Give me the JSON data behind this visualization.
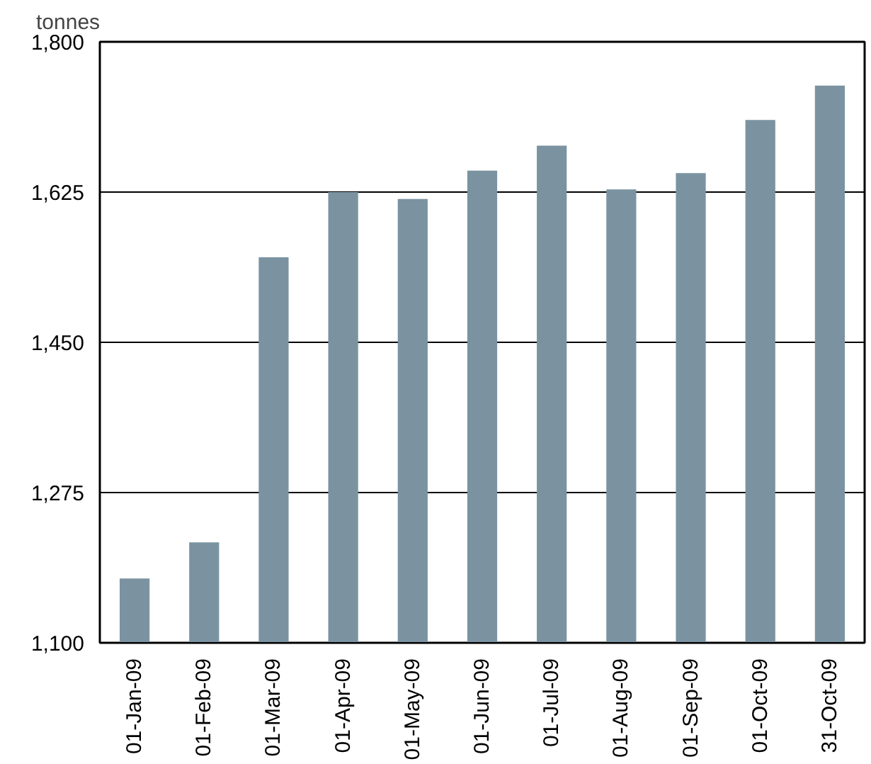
{
  "chart_data": {
    "type": "bar",
    "ylabel": "tonnes",
    "categories": [
      "01-Jan-09",
      "01-Feb-09",
      "01-Mar-09",
      "01-Apr-09",
      "01-May-09",
      "01-Jun-09",
      "01-Jul-09",
      "01-Aug-09",
      "01-Sep-09",
      "01-Oct-09",
      "31-Oct-09"
    ],
    "values": [
      1175,
      1217,
      1549,
      1625,
      1617,
      1650,
      1679,
      1628,
      1647,
      1709,
      1749
    ],
    "color": "#7b93a1",
    "ylim": [
      1100,
      1800
    ],
    "yticks": [
      {
        "value": 1100,
        "label": "1,100"
      },
      {
        "value": 1275,
        "label": "1,275"
      },
      {
        "value": 1450,
        "label": "1,450"
      },
      {
        "value": 1625,
        "label": "1,625"
      },
      {
        "value": 1800,
        "label": "1,800"
      }
    ],
    "grid": "y"
  }
}
